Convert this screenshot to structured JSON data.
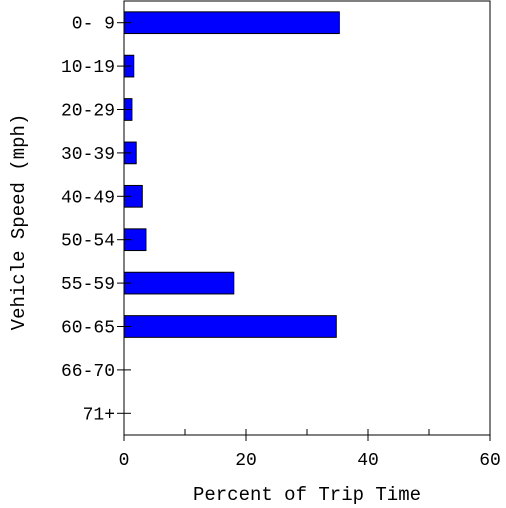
{
  "chart_data": {
    "type": "bar",
    "orientation": "horizontal",
    "title": "",
    "xlabel": "Percent of Trip Time",
    "ylabel": "Vehicle Speed (mph)",
    "categories": [
      "0- 9",
      "10-19",
      "20-29",
      "30-39",
      "40-49",
      "50-54",
      "55-59",
      "60-65",
      "66-70",
      "71+"
    ],
    "values": [
      35.3,
      1.6,
      1.3,
      2.0,
      3.0,
      3.6,
      18.0,
      34.8,
      0,
      0
    ],
    "xlim": [
      0,
      60
    ],
    "xticks": [
      0,
      20,
      40,
      60
    ],
    "bar_color": "#0000ff",
    "grid": false,
    "legend": "none"
  }
}
